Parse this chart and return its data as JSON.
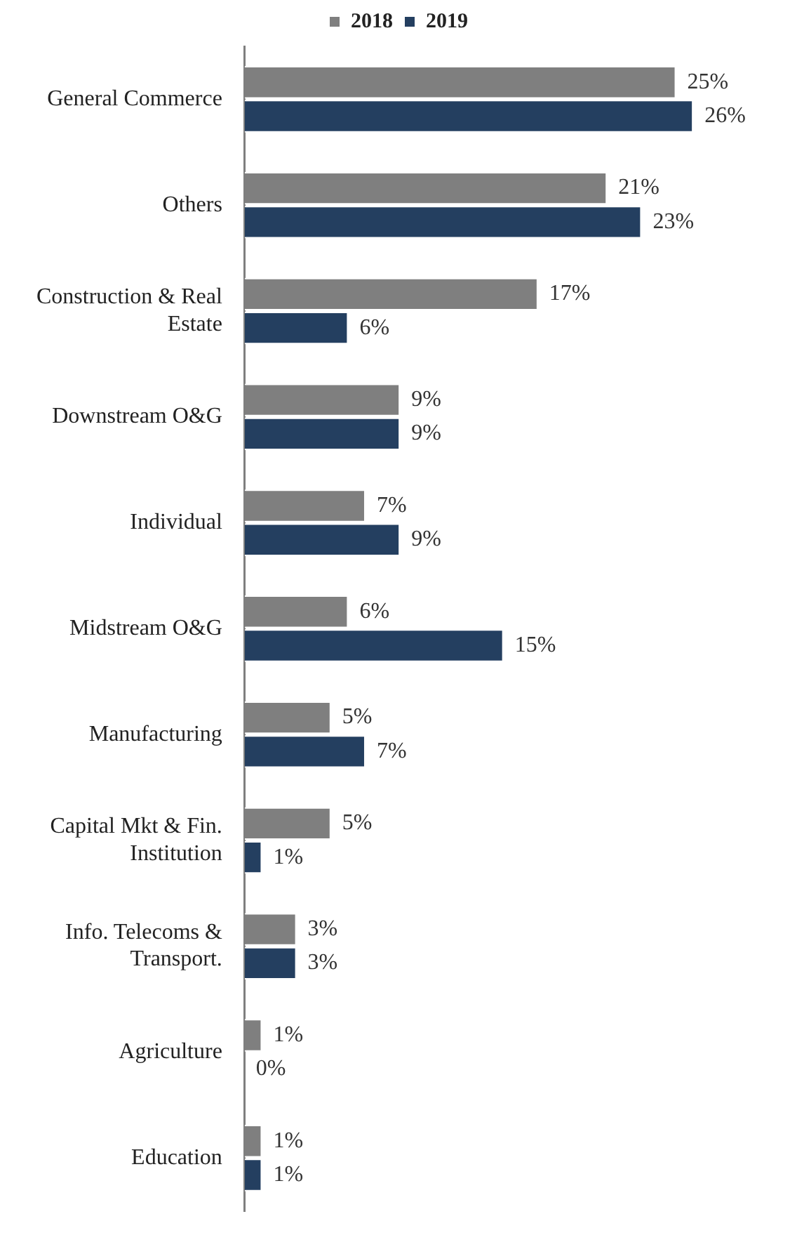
{
  "chart_data": {
    "type": "bar",
    "orientation": "horizontal",
    "legend": "top",
    "categories": [
      "General Commerce",
      "Others",
      "Construction & Real Estate",
      "Downstream O&G",
      "Individual",
      "Midstream O&G",
      "Manufacturing",
      "Capital Mkt & Fin. Institution",
      "Info. Telecoms & Transport.",
      "Agriculture",
      "Education"
    ],
    "series": [
      {
        "name": "2018",
        "color": "#7f7f7f",
        "values": [
          25,
          21,
          17,
          9,
          7,
          6,
          5,
          5,
          3,
          1,
          1
        ],
        "value_labels": [
          "25%",
          "21%",
          "17%",
          "9%",
          "7%",
          "6%",
          "5%",
          "5%",
          "3%",
          "1%",
          "1%"
        ]
      },
      {
        "name": "2019",
        "color": "#243f60",
        "values": [
          26,
          23,
          6,
          9,
          9,
          15,
          7,
          1,
          3,
          0,
          1
        ],
        "value_labels": [
          "26%",
          "23%",
          "6%",
          "9%",
          "9%",
          "15%",
          "7%",
          "1%",
          "3%",
          "0%",
          "1%"
        ]
      }
    ]
  }
}
